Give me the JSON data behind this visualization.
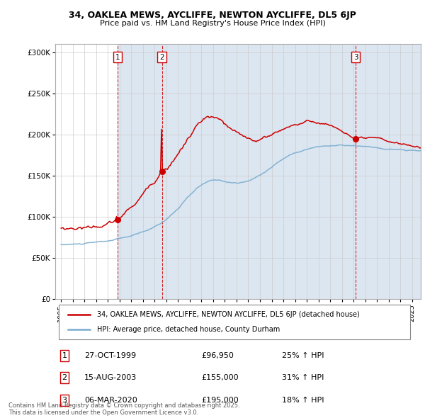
{
  "title1": "34, OAKLEA MEWS, AYCLIFFE, NEWTON AYCLIFFE, DL5 6JP",
  "title2": "Price paid vs. HM Land Registry's House Price Index (HPI)",
  "ylabel_ticks": [
    "£0",
    "£50K",
    "£100K",
    "£150K",
    "£200K",
    "£250K",
    "£300K"
  ],
  "ytick_vals": [
    0,
    50000,
    100000,
    150000,
    200000,
    250000,
    300000
  ],
  "ylim": [
    0,
    310000
  ],
  "sale_dates": [
    "1999-10-27",
    "2003-08-15",
    "2020-03-06"
  ],
  "sale_prices": [
    96950,
    155000,
    195000
  ],
  "sale_labels": [
    "1",
    "2",
    "3"
  ],
  "sale_info": [
    {
      "label": "1",
      "date": "27-OCT-1999",
      "price": "£96,950",
      "pct": "25% ↑ HPI"
    },
    {
      "label": "2",
      "date": "15-AUG-2003",
      "price": "£155,000",
      "pct": "31% ↑ HPI"
    },
    {
      "label": "3",
      "date": "06-MAR-2020",
      "price": "£195,000",
      "pct": "18% ↑ HPI"
    }
  ],
  "legend_red": "34, OAKLEA MEWS, AYCLIFFE, NEWTON AYCLIFFE, DL5 6JP (detached house)",
  "legend_blue": "HPI: Average price, detached house, County Durham",
  "footnote": "Contains HM Land Registry data © Crown copyright and database right 2025.\nThis data is licensed under the Open Government Licence v3.0.",
  "red_color": "#cc0000",
  "blue_color": "#7aadcf",
  "shade_color": "#dce6f1",
  "grid_color": "#cccccc",
  "border_color": "#aaaaaa"
}
